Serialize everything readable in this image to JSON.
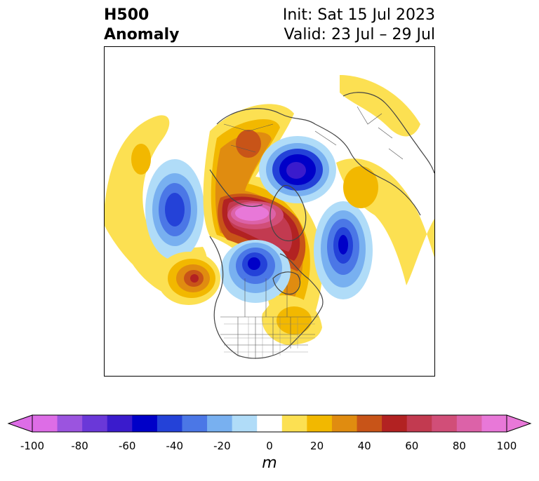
{
  "title": {
    "left_line1": "H500",
    "left_line2": "Anomaly",
    "right_line1": "Init: Sat 15 Jul 2023",
    "right_line2": "Valid: 23 Jul – 29 Jul"
  },
  "colorbar": {
    "unit": "m",
    "ticks": [
      "-100",
      "-80",
      "-60",
      "-40",
      "-20",
      "0",
      "20",
      "40",
      "60",
      "80",
      "100"
    ],
    "levels": [
      -100,
      -90,
      -80,
      -70,
      -60,
      -50,
      -40,
      -30,
      -20,
      -10,
      10,
      20,
      30,
      40,
      50,
      60,
      70,
      80,
      90,
      100
    ],
    "colors": [
      "#dd6de6",
      "#9b54df",
      "#6a38d8",
      "#3a1bcc",
      "#0000c8",
      "#2442d8",
      "#4b77e6",
      "#78b0f0",
      "#b0dcf8",
      "#ffffff",
      "#fce052",
      "#f2b800",
      "#e08c10",
      "#c85418",
      "#b22222",
      "#c23a50",
      "#d14e78",
      "#dc62a8",
      "#e878d8"
    ],
    "under_color": "#dd6de6",
    "over_color": "#e878d8"
  },
  "map": {
    "projection": "north-polar-stereographic",
    "features": [
      "coastlines",
      "country-borders",
      "state-borders"
    ],
    "anomaly_centers": [
      {
        "region": "Arctic Ocean / Greenland-Siberia",
        "sign": "positive",
        "peak": 100
      },
      {
        "region": "Barents / Kara Sea",
        "sign": "negative",
        "peak": -70
      },
      {
        "region": "North Pacific",
        "sign": "negative",
        "peak": -60
      },
      {
        "region": "Northwest Canada / Alaska",
        "sign": "negative",
        "peak": -60
      },
      {
        "region": "Central Pacific",
        "sign": "positive",
        "peak": 60
      },
      {
        "region": "North Atlantic",
        "sign": "negative",
        "peak": -60
      },
      {
        "region": "Western Siberia",
        "sign": "positive",
        "peak": 40
      },
      {
        "region": "Northern Europe",
        "sign": "positive",
        "peak": 30
      },
      {
        "region": "Eastern United States",
        "sign": "positive",
        "peak": 20
      }
    ]
  }
}
